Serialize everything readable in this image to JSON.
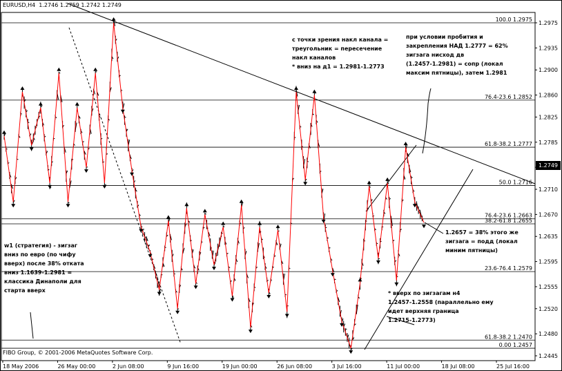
{
  "window": {
    "title": "EURUSD,H4  1.2746 1.2759 1.2742 1.2749",
    "copyright": "FIBO Group, © 2001-2006 MetaQuotes Software Corp."
  },
  "chart_data": {
    "type": "candlestick",
    "symbol": "EURUSD",
    "timeframe": "H4",
    "ohlc_last": {
      "open": 1.2746,
      "high": 1.2759,
      "low": 1.2742,
      "close": 1.2749
    },
    "current_price": "1.2749",
    "ylim": [
      1.2445,
      1.2975
    ],
    "y_ticks": [
      "1.2975",
      "1.2935",
      "1.2900",
      "1.2860",
      "1.2825",
      "1.2785",
      "1.2745",
      "1.2710",
      "1.2670",
      "1.2635",
      "1.2595",
      "1.2555",
      "1.2520",
      "1.2480",
      "1.2445"
    ],
    "x_ticks": [
      "18 May 2006",
      "26 May 00:00",
      "2 Jun 08:00",
      "9 Jun 16:00",
      "19 Jun 00:00",
      "26 Jun 08:00",
      "3 Jul 16:00",
      "11 Jul 00:00",
      "18 Jul 08:00",
      "25 Jul 16:00"
    ],
    "fibo_levels": [
      {
        "label": "100.0 1.2975",
        "price": 1.2975
      },
      {
        "label": "76.4-23.6 1.2852",
        "price": 1.2852
      },
      {
        "label": "61.8-38.2 1.2777",
        "price": 1.2777
      },
      {
        "label": "50.0 1.2716",
        "price": 1.2716
      },
      {
        "label": "76.4-23.6 1.2663",
        "price": 1.2663
      },
      {
        "label": "38.2-61.8 1.2655",
        "price": 1.2655
      },
      {
        "label": "23.6-76.4 1.2579",
        "price": 1.2579
      },
      {
        "label": "61.8-38.2 1.2470",
        "price": 1.247
      },
      {
        "label": "0.00 1.2457",
        "price": 1.2457
      }
    ],
    "zigzag": [
      1.2795,
      1.269,
      1.2865,
      1.278,
      1.284,
      1.272,
      1.2895,
      1.269,
      1.284,
      1.2745,
      1.2895,
      1.272,
      1.2975,
      1.284,
      1.274,
      1.265,
      1.261,
      1.255,
      1.266,
      1.252,
      1.268,
      1.256,
      1.267,
      1.259,
      1.265,
      1.254,
      1.2685,
      1.249,
      1.265,
      1.2545,
      1.2645,
      1.2515,
      1.2865,
      1.2725,
      1.286,
      1.2665,
      1.258,
      1.25,
      1.2457,
      1.256,
      1.2715,
      1.26,
      1.272,
      1.2565,
      1.2777,
      1.269,
      1.2657
    ]
  },
  "annotations": {
    "note_top_center": "с точки зрения накл канала =\nтреугольник = пересечение\nнакл каналов\n* вниз на д1 = 1.2981-1.2773",
    "note_top_right": "при условии пробития и\nзакрепления НАД 1.2777 = 62%\nзигзага нисход дв\n(1.2457-1.2981) = сопр (локал\nмаксим пятницы), затем 1.2981",
    "note_right": "1.2657 = 38% этого же\nзигзага = подд (локал\nминим пятницы)",
    "note_left": "w1 (стратегия) - зигзаг\nвниз по евро (по чифу\nвверх) после 38% отката\nвниз 1.1639-1.2981 =\nклассика Динаполи для\nстарта вверх",
    "note_bottom": "* вверх по зигзагам н4\n1.2457-1.2558 (параллельно ему\nидет верхняя граница\n1.2715-1.2773)"
  },
  "colors": {
    "zigzag": "#ff0000",
    "candles": "#000000",
    "levels": "#000000",
    "background": "#ffffff"
  }
}
